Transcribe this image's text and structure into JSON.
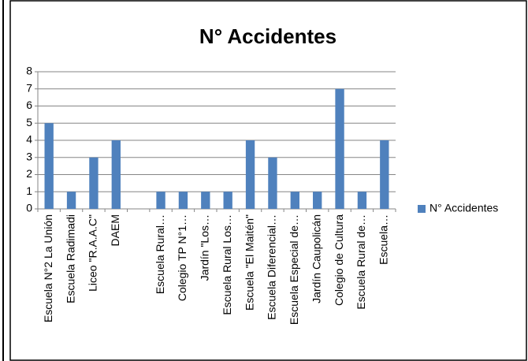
{
  "chart_data": {
    "type": "bar",
    "title": "N° Accidentes",
    "categories": [
      "Escuela N°2 La Unión",
      "Escuela Radimadi",
      "Liceo \"R.A.A.C\"",
      "DAEM",
      null,
      "Escuela Rural…",
      "Colegio TP N°1…",
      "Jardín \"Los…",
      "Escuela Rural Los…",
      "Escuela \"El Maitén\"",
      "Escuela Diferencial…",
      "Escuela Especial de…",
      "Jardín Caupolicán",
      "Colegio de Cultura",
      "Escuela Rural de…",
      "Escuela…"
    ],
    "series": [
      {
        "name": "N° Accidentes",
        "color": "#4f81bd",
        "values": [
          5,
          1,
          3,
          4,
          null,
          1,
          1,
          1,
          1,
          4,
          3,
          1,
          1,
          7,
          1,
          4
        ]
      }
    ],
    "ylim": [
      0,
      8
    ],
    "yticks": [
      0,
      1,
      2,
      3,
      4,
      5,
      6,
      7,
      8
    ],
    "grid": true,
    "legend": "right"
  }
}
